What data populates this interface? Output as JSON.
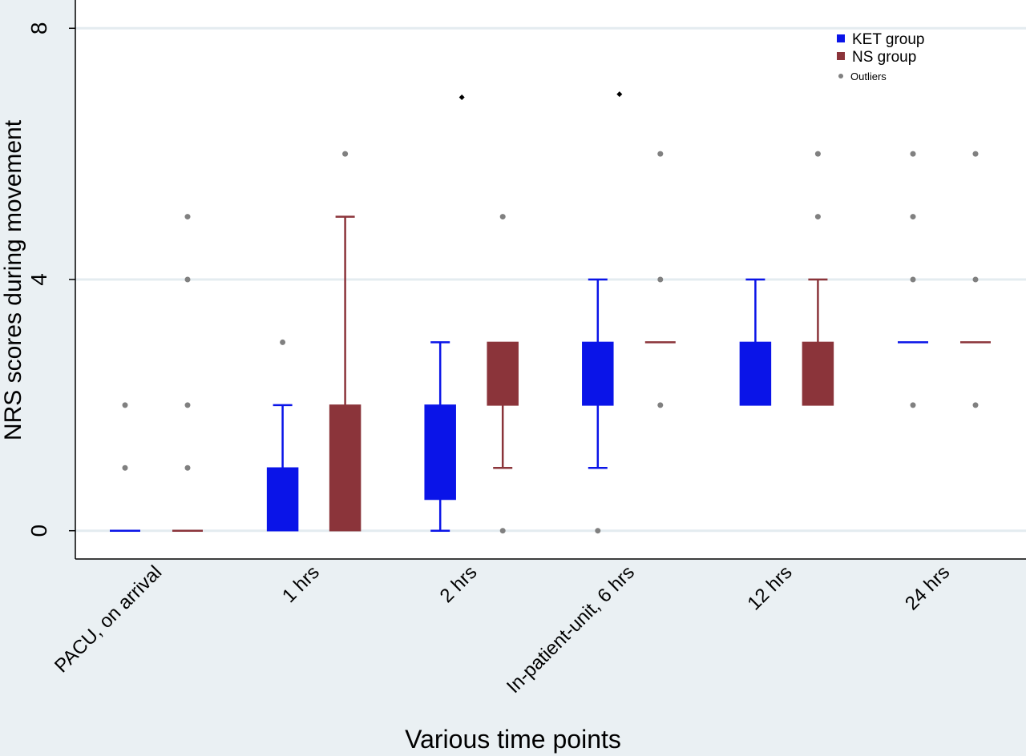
{
  "chart_data": {
    "type": "box",
    "xlabel": "Various time points",
    "ylabel": "NRS scores during movement",
    "ylim": [
      -0.45,
      8.45
    ],
    "yticks": [
      0,
      4,
      8
    ],
    "ytick_labels": [
      "0",
      "4",
      "8"
    ],
    "grid": true,
    "legend_position": "top-right",
    "categories": [
      "PACU, on arrival",
      "1 hrs",
      "2 hrs",
      "In-patient-unit, 6 hrs",
      "12 hrs",
      "24 hrs"
    ],
    "legend": [
      {
        "label": "KET group",
        "marker": "square",
        "color": "#0a14e8"
      },
      {
        "label": "NS group",
        "marker": "square",
        "color": "#8b343a"
      },
      {
        "label": "Outliers",
        "marker": "dot",
        "color": "#808080"
      }
    ],
    "series": [
      {
        "name": "KET group",
        "color": "#0a14e8",
        "boxes": [
          {
            "q1": 0,
            "median": 0,
            "q3": 0,
            "whisker_low": 0,
            "whisker_high": 0,
            "outliers": [
              1,
              2
            ]
          },
          {
            "q1": 0,
            "median": 0,
            "q3": 1,
            "whisker_low": 0,
            "whisker_high": 2,
            "outliers": [
              3
            ]
          },
          {
            "q1": 0.5,
            "median": 2,
            "q3": 2,
            "whisker_low": 0,
            "whisker_high": 3,
            "outliers": []
          },
          {
            "q1": 2,
            "median": 2,
            "q3": 3,
            "whisker_low": 1,
            "whisker_high": 4,
            "outliers": [
              0
            ]
          },
          {
            "q1": 2,
            "median": 2,
            "q3": 3,
            "whisker_low": 2,
            "whisker_high": 4,
            "outliers": []
          },
          {
            "q1": 3,
            "median": 3,
            "q3": 3,
            "whisker_low": 3,
            "whisker_high": 3,
            "outliers": [
              2,
              4,
              5,
              6
            ]
          }
        ]
      },
      {
        "name": "NS group",
        "color": "#8b343a",
        "boxes": [
          {
            "q1": 0,
            "median": 0,
            "q3": 0,
            "whisker_low": 0,
            "whisker_high": 0,
            "outliers": [
              1,
              2,
              4,
              5
            ]
          },
          {
            "q1": 0,
            "median": 0,
            "q3": 2,
            "whisker_low": 0,
            "whisker_high": 5,
            "outliers": [
              6
            ]
          },
          {
            "q1": 2,
            "median": 3,
            "q3": 3,
            "whisker_low": 1,
            "whisker_high": 3,
            "outliers": [
              0,
              5
            ]
          },
          {
            "q1": 3,
            "median": 3,
            "q3": 3,
            "whisker_low": 3,
            "whisker_high": 3,
            "outliers": [
              2,
              4,
              6
            ]
          },
          {
            "q1": 2,
            "median": 2,
            "q3": 3,
            "whisker_low": 2,
            "whisker_high": 4,
            "outliers": [
              5,
              6
            ]
          },
          {
            "q1": 3,
            "median": 3,
            "q3": 3,
            "whisker_low": 3,
            "whisker_high": 3,
            "outliers": [
              2,
              4,
              6
            ]
          }
        ]
      }
    ],
    "annotations": [
      {
        "marker": "diamond",
        "color": "#000000",
        "category": "2 hrs",
        "y": 6.9
      },
      {
        "marker": "diamond",
        "color": "#000000",
        "category": "In-patient-unit, 6 hrs",
        "y": 6.95
      }
    ]
  }
}
